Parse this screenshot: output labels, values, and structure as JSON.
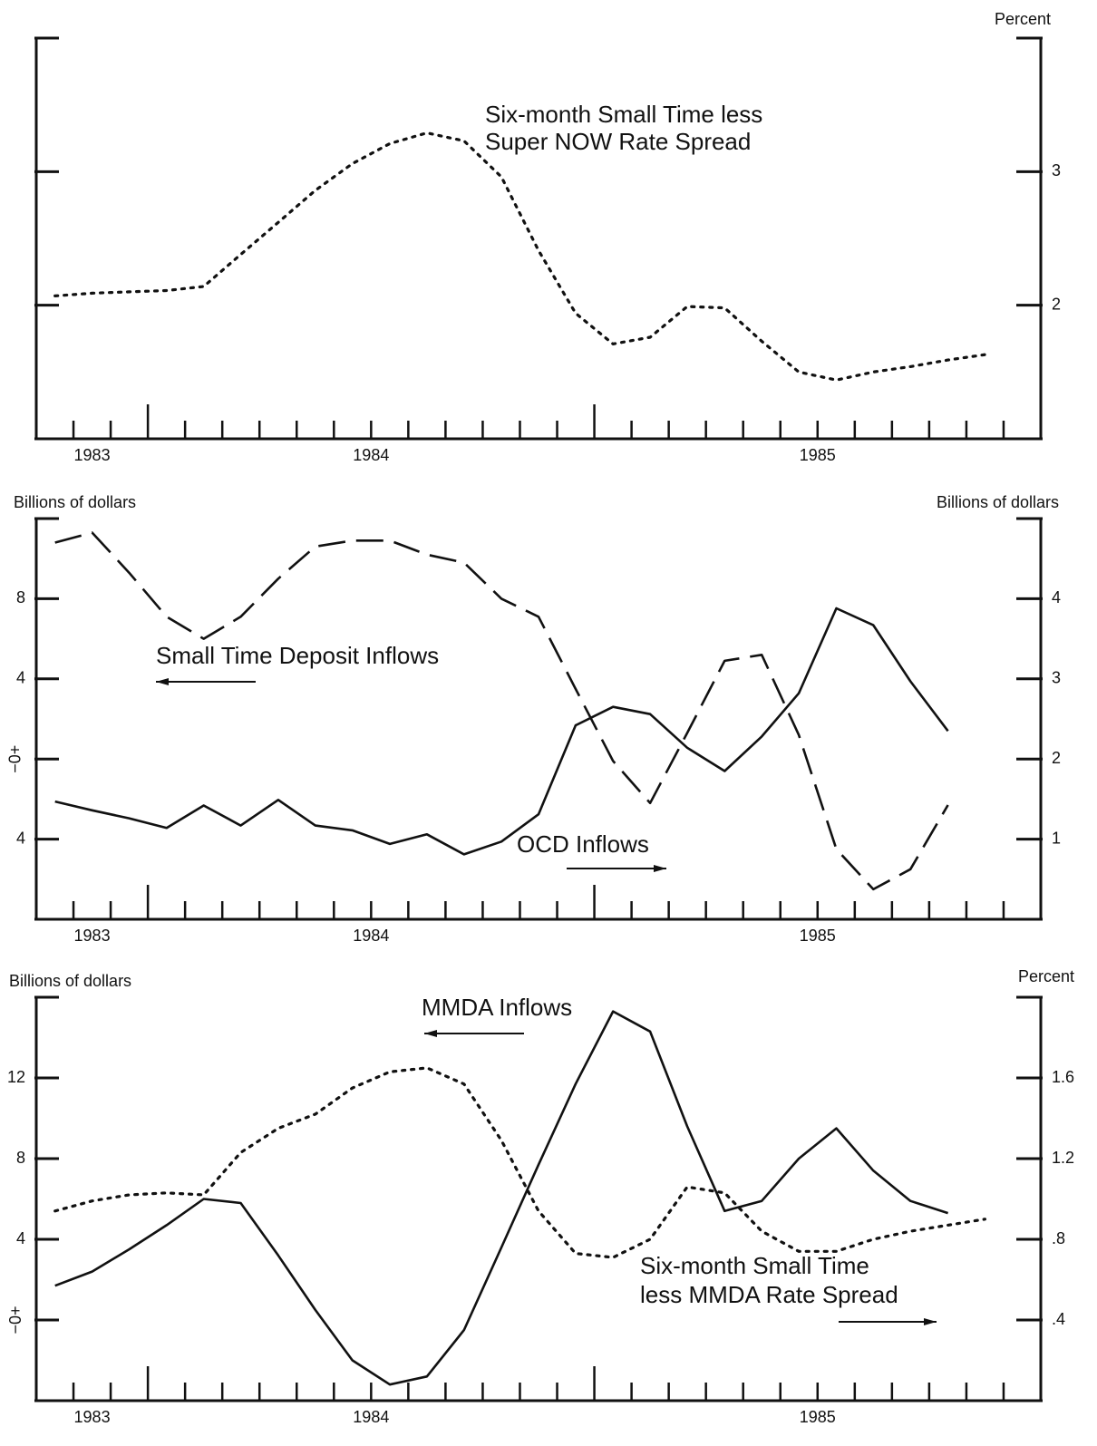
{
  "chart_data": [
    {
      "type": "line",
      "y2label": "Percent",
      "annotations": [
        "Six-month Small Time less",
        "Super NOW Rate Spread"
      ],
      "xlim": [
        1983.75,
        1986.0
      ],
      "year_labels": [
        1983,
        1984,
        1985
      ],
      "y2lim": [
        1,
        4
      ],
      "y2ticks": [
        2,
        3
      ],
      "series": [
        {
          "axis": "y2",
          "color": "#111",
          "line_style": "dotted",
          "x": [
            1983.792,
            1983.875,
            1983.958,
            1984.042,
            1984.125,
            1984.208,
            1984.292,
            1984.375,
            1984.458,
            1984.542,
            1984.625,
            1984.708,
            1984.792,
            1984.875,
            1984.958,
            1985.042,
            1985.125,
            1985.208,
            1985.292,
            1985.375,
            1985.458,
            1985.542,
            1985.625,
            1985.708,
            1985.792,
            1985.875
          ],
          "values": [
            2.07,
            2.09,
            2.1,
            2.11,
            2.14,
            2.38,
            2.62,
            2.86,
            3.06,
            3.21,
            3.29,
            3.23,
            2.96,
            2.41,
            1.94,
            1.71,
            1.76,
            1.99,
            1.98,
            1.73,
            1.5,
            1.44,
            1.5,
            1.54,
            1.59,
            1.63
          ]
        }
      ]
    },
    {
      "type": "line",
      "ylabel": "Billions of dollars",
      "y2label": "Billions of dollars",
      "annotations": [
        "Small Time Deposit Inflows",
        "OCD Inflows"
      ],
      "xlim": [
        1983.75,
        1986.0
      ],
      "year_labels": [
        1983,
        1984,
        1985
      ],
      "ylim": [
        -8,
        12
      ],
      "yticks": [
        {
          "value": -4,
          "label": "4"
        },
        {
          "value": 0,
          "label": "−0+",
          "rotated": true
        },
        4,
        8
      ],
      "y2lim": [
        0,
        5
      ],
      "y2ticks": [
        1,
        2,
        3,
        4
      ],
      "series": [
        {
          "axis": "y",
          "color": "#111",
          "line_style": "dashed",
          "x": [
            1983.792,
            1983.875,
            1983.958,
            1984.042,
            1984.125,
            1984.208,
            1984.292,
            1984.375,
            1984.458,
            1984.542,
            1984.625,
            1984.708,
            1984.792,
            1984.875,
            1984.958,
            1985.042,
            1985.125,
            1985.208,
            1985.292,
            1985.375,
            1985.458,
            1985.542,
            1985.625,
            1985.708,
            1985.792
          ],
          "values": [
            10.8,
            11.3,
            9.3,
            7.1,
            6.0,
            7.1,
            9.0,
            10.6,
            10.9,
            10.9,
            10.2,
            9.8,
            8.0,
            7.1,
            3.5,
            -0.1,
            -2.2,
            1.3,
            4.9,
            5.2,
            1.2,
            -4.5,
            -6.5,
            -5.5,
            -2.3
          ]
        },
        {
          "axis": "y2",
          "color": "#111",
          "line_style": "solid",
          "x": [
            1983.792,
            1983.875,
            1983.958,
            1984.042,
            1984.125,
            1984.208,
            1984.292,
            1984.375,
            1984.458,
            1984.542,
            1984.625,
            1984.708,
            1984.792,
            1984.875,
            1984.958,
            1985.042,
            1985.125,
            1985.208,
            1985.292,
            1985.375,
            1985.458,
            1985.542,
            1985.625,
            1985.708,
            1985.792
          ],
          "values": [
            1.47,
            1.36,
            1.26,
            1.14,
            1.42,
            1.17,
            1.49,
            1.17,
            1.11,
            0.94,
            1.06,
            0.81,
            0.97,
            1.31,
            2.42,
            2.65,
            2.56,
            2.14,
            1.85,
            2.28,
            2.82,
            3.88,
            3.67,
            2.97,
            2.35
          ]
        }
      ]
    },
    {
      "type": "line",
      "ylabel": "Billions of dollars",
      "y2label": "Percent",
      "annotations": [
        "MMDA Inflows",
        "Six-month Small Time",
        "less MMDA Rate Spread"
      ],
      "xlim": [
        1983.75,
        1986.0
      ],
      "year_labels": [
        1983,
        1984,
        1985
      ],
      "ylim": [
        -4,
        16
      ],
      "yticks": [
        {
          "value": 0,
          "label": "−0+",
          "rotated": true
        },
        4,
        8,
        12
      ],
      "y2lim": [
        0,
        2
      ],
      "y2ticks": [
        {
          "value": 0.4,
          "label": ".4"
        },
        {
          "value": 0.8,
          "label": ".8"
        },
        1.2,
        1.6
      ],
      "series": [
        {
          "axis": "y",
          "color": "#111",
          "line_style": "solid",
          "x": [
            1983.792,
            1983.875,
            1983.958,
            1984.042,
            1984.125,
            1984.208,
            1984.292,
            1984.375,
            1984.458,
            1984.542,
            1984.625,
            1984.708,
            1984.792,
            1984.875,
            1984.958,
            1985.042,
            1985.125,
            1985.208,
            1985.292,
            1985.375,
            1985.458,
            1985.542,
            1985.625,
            1985.708,
            1985.792
          ],
          "values": [
            1.7,
            2.4,
            3.5,
            4.7,
            6.0,
            5.8,
            3.2,
            0.5,
            -2.0,
            -3.2,
            -2.8,
            -0.5,
            3.6,
            7.7,
            11.7,
            15.3,
            14.3,
            9.6,
            5.4,
            5.9,
            8.0,
            9.5,
            7.4,
            5.9,
            5.3
          ]
        },
        {
          "axis": "y2",
          "color": "#111",
          "line_style": "dotted",
          "x": [
            1983.792,
            1983.875,
            1983.958,
            1984.042,
            1984.125,
            1984.208,
            1984.292,
            1984.375,
            1984.458,
            1984.542,
            1984.625,
            1984.708,
            1984.792,
            1984.875,
            1984.958,
            1985.042,
            1985.125,
            1985.208,
            1985.292,
            1985.375,
            1985.458,
            1985.542,
            1985.625,
            1985.708,
            1985.792,
            1985.875
          ],
          "values": [
            0.94,
            0.99,
            1.02,
            1.03,
            1.02,
            1.23,
            1.35,
            1.42,
            1.55,
            1.63,
            1.65,
            1.57,
            1.29,
            0.94,
            0.73,
            0.71,
            0.8,
            1.06,
            1.03,
            0.84,
            0.74,
            0.74,
            0.8,
            0.84,
            0.87,
            0.9
          ]
        }
      ]
    }
  ]
}
